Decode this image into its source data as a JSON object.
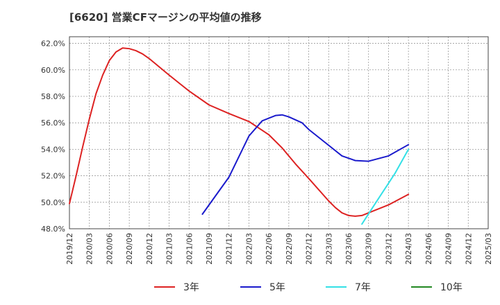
{
  "chart_data": {
    "type": "line",
    "title": "[6620]  営業CFマージンの平均値の推移",
    "xlabel": "",
    "ylabel": "",
    "x_ticks": [
      "2019/12",
      "2020/03",
      "2020/06",
      "2020/09",
      "2020/12",
      "2021/03",
      "2021/06",
      "2021/09",
      "2021/12",
      "2022/03",
      "2022/06",
      "2022/09",
      "2022/12",
      "2023/03",
      "2023/06",
      "2023/09",
      "2023/12",
      "2024/03",
      "2024/06",
      "2024/09",
      "2024/12",
      "2025/03"
    ],
    "y_ticks": [
      "48.0%",
      "50.0%",
      "52.0%",
      "54.0%",
      "56.0%",
      "58.0%",
      "60.0%",
      "62.0%"
    ],
    "ylim": [
      48,
      62.5
    ],
    "grid": true,
    "legend_position": "bottom",
    "series": [
      {
        "name": "3年",
        "color": "#dd2222",
        "points": [
          [
            "2019/12",
            49.9
          ],
          [
            "2020/01",
            52.0
          ],
          [
            "2020/02",
            54.2
          ],
          [
            "2020/03",
            56.3
          ],
          [
            "2020/04",
            58.2
          ],
          [
            "2020/05",
            59.6
          ],
          [
            "2020/06",
            60.7
          ],
          [
            "2020/07",
            61.35
          ],
          [
            "2020/08",
            61.65
          ],
          [
            "2020/09",
            61.6
          ],
          [
            "2020/10",
            61.45
          ],
          [
            "2020/11",
            61.2
          ],
          [
            "2020/12",
            60.85
          ],
          [
            "2021/03",
            59.6
          ],
          [
            "2021/06",
            58.4
          ],
          [
            "2021/09",
            57.35
          ],
          [
            "2021/12",
            56.7
          ],
          [
            "2022/03",
            56.1
          ],
          [
            "2022/06",
            55.1
          ],
          [
            "2022/08",
            54.1
          ],
          [
            "2022/10",
            52.9
          ],
          [
            "2022/12",
            51.8
          ],
          [
            "2023/03",
            50.1
          ],
          [
            "2023/04",
            49.6
          ],
          [
            "2023/05",
            49.2
          ],
          [
            "2023/06",
            49.0
          ],
          [
            "2023/07",
            48.95
          ],
          [
            "2023/08",
            49.0
          ],
          [
            "2023/09",
            49.2
          ],
          [
            "2023/12",
            49.8
          ],
          [
            "2024/03",
            50.6
          ]
        ]
      },
      {
        "name": "5年",
        "color": "#1a1acc",
        "points": [
          [
            "2021/08",
            49.1
          ],
          [
            "2021/12",
            51.9
          ],
          [
            "2022/03",
            55.0
          ],
          [
            "2022/05",
            56.15
          ],
          [
            "2022/07",
            56.55
          ],
          [
            "2022/08",
            56.6
          ],
          [
            "2022/09",
            56.45
          ],
          [
            "2022/11",
            56.0
          ],
          [
            "2022/12",
            55.5
          ],
          [
            "2023/03",
            54.3
          ],
          [
            "2023/05",
            53.5
          ],
          [
            "2023/07",
            53.15
          ],
          [
            "2023/09",
            53.1
          ],
          [
            "2023/12",
            53.5
          ],
          [
            "2024/03",
            54.35
          ]
        ]
      },
      {
        "name": "7年",
        "color": "#33e0e6",
        "points": [
          [
            "2023/08",
            48.35
          ],
          [
            "2023/10",
            49.9
          ],
          [
            "2024/01",
            52.2
          ],
          [
            "2024/03",
            54.0
          ]
        ]
      },
      {
        "name": "10年",
        "color": "#228822",
        "points": []
      }
    ]
  }
}
